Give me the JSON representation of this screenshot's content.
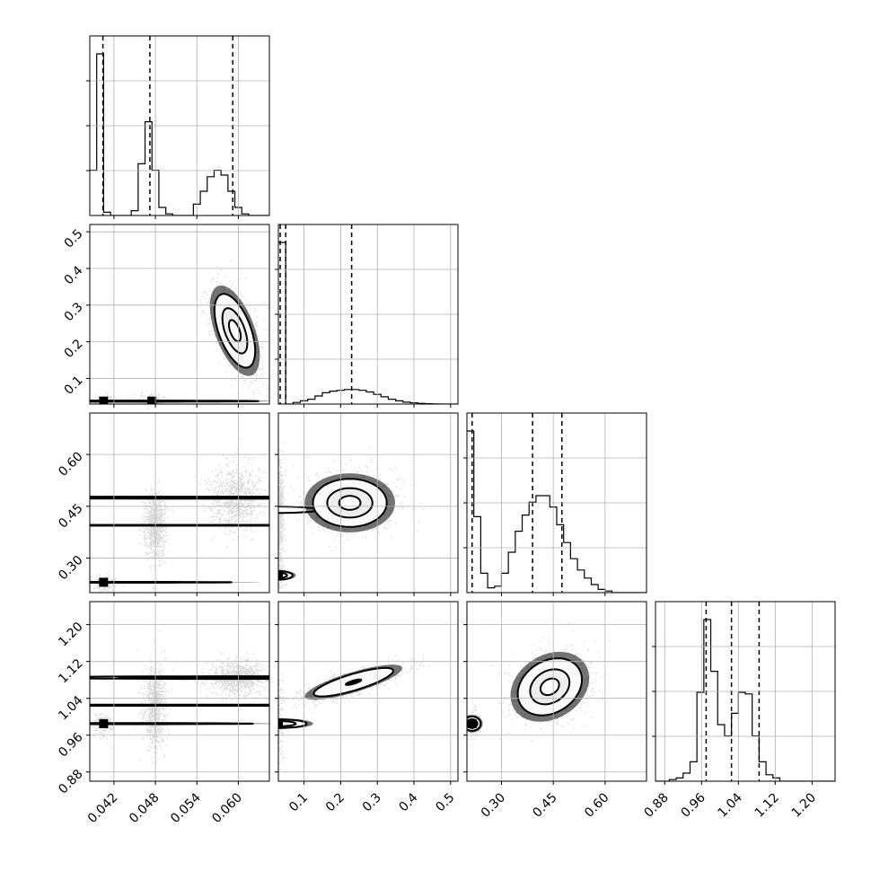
{
  "chart_data": {
    "type": "corner",
    "grid": true,
    "parameters": [
      {
        "range": [
          0.0385,
          0.0645
        ],
        "x_ticks": [
          "0.042",
          "0.048",
          "0.054",
          "0.060"
        ],
        "x_tick_values": [
          0.042,
          0.048,
          0.054,
          0.06
        ],
        "quantiles": [
          0.0404,
          0.0472,
          0.0592
        ],
        "histogram": {
          "edges": [
            0.0385,
            0.0395,
            0.0405,
            0.0415,
            0.0425,
            0.0435,
            0.0445,
            0.0455,
            0.0465,
            0.0475,
            0.0485,
            0.0495,
            0.0505,
            0.0515,
            0.0525,
            0.0535,
            0.0545,
            0.0555,
            0.0565,
            0.0575,
            0.0585,
            0.0595,
            0.0605,
            0.0615,
            0.0625,
            0.0635,
            0.0645
          ],
          "counts": [
            0.28,
            1.0,
            0.02,
            0.0,
            0.0,
            0.0,
            0.03,
            0.32,
            0.58,
            0.28,
            0.05,
            0.01,
            0.0,
            0.0,
            0.0,
            0.07,
            0.15,
            0.24,
            0.28,
            0.25,
            0.15,
            0.05,
            0.01,
            0.0,
            0.0,
            0.0
          ]
        }
      },
      {
        "range": [
          0.03,
          0.52
        ],
        "x_ticks": [
          "0.1",
          "0.2",
          "0.3",
          "0.4",
          "0.5"
        ],
        "x_tick_values": [
          0.1,
          0.2,
          0.3,
          0.4,
          0.5
        ],
        "y_ticks": [
          "0.1",
          "0.2",
          "0.3",
          "0.4",
          "0.5"
        ],
        "y_tick_values": [
          0.1,
          0.2,
          0.3,
          0.4,
          0.5
        ],
        "quantiles": [
          0.035,
          0.05,
          0.23
        ],
        "histogram": {
          "edges": [
            0.03,
            0.05,
            0.07,
            0.09,
            0.11,
            0.13,
            0.15,
            0.17,
            0.19,
            0.21,
            0.23,
            0.25,
            0.27,
            0.29,
            0.31,
            0.33,
            0.35,
            0.37,
            0.39,
            0.41,
            0.43,
            0.45,
            0.47,
            0.49,
            0.51,
            0.52
          ],
          "counts": [
            1.0,
            0.0,
            0.01,
            0.02,
            0.03,
            0.05,
            0.07,
            0.08,
            0.085,
            0.09,
            0.09,
            0.085,
            0.075,
            0.06,
            0.045,
            0.03,
            0.02,
            0.012,
            0.008,
            0.004,
            0.002,
            0.001,
            0.0,
            0.0,
            0.0
          ]
        }
      },
      {
        "range": [
          0.2,
          0.72
        ],
        "x_ticks": [
          "0.30",
          "0.45",
          "0.60"
        ],
        "x_tick_values": [
          0.3,
          0.45,
          0.6
        ],
        "y_ticks": [
          "0.30",
          "0.45",
          "0.60"
        ],
        "y_tick_values": [
          0.3,
          0.45,
          0.6
        ],
        "quantiles": [
          0.215,
          0.39,
          0.475
        ],
        "histogram": {
          "edges": [
            0.2,
            0.22,
            0.24,
            0.26,
            0.28,
            0.3,
            0.32,
            0.34,
            0.36,
            0.38,
            0.4,
            0.42,
            0.44,
            0.46,
            0.48,
            0.5,
            0.52,
            0.54,
            0.56,
            0.58,
            0.6,
            0.62,
            0.64,
            0.66,
            0.68,
            0.7,
            0.72
          ],
          "counts": [
            1.0,
            0.47,
            0.12,
            0.03,
            0.04,
            0.12,
            0.25,
            0.38,
            0.48,
            0.56,
            0.6,
            0.6,
            0.53,
            0.42,
            0.31,
            0.21,
            0.14,
            0.09,
            0.05,
            0.02,
            0.01,
            0.0,
            0.0,
            0.0,
            0.0,
            0.0
          ]
        }
      },
      {
        "range": [
          0.86,
          1.25
        ],
        "x_ticks": [
          "0.88",
          "0.96",
          "1.04",
          "1.12",
          "1.20"
        ],
        "x_tick_values": [
          0.88,
          0.96,
          1.04,
          1.12,
          1.2
        ],
        "y_ticks": [
          "0.88",
          "0.96",
          "1.04",
          "1.12",
          "1.20"
        ],
        "y_tick_values": [
          0.88,
          0.96,
          1.04,
          1.12,
          1.2
        ],
        "quantiles": [
          0.97,
          1.025,
          1.085
        ],
        "histogram": {
          "edges": [
            0.86,
            0.875,
            0.89,
            0.905,
            0.92,
            0.935,
            0.95,
            0.965,
            0.98,
            0.995,
            1.01,
            1.025,
            1.04,
            1.055,
            1.07,
            1.085,
            1.1,
            1.115,
            1.13,
            1.145,
            1.16,
            1.175,
            1.19,
            1.205,
            1.22,
            1.235,
            1.25
          ],
          "counts": [
            0.0,
            0.0,
            0.01,
            0.02,
            0.05,
            0.12,
            0.55,
            1.0,
            0.68,
            0.35,
            0.28,
            0.42,
            0.55,
            0.54,
            0.28,
            0.12,
            0.04,
            0.02,
            0.0,
            0.0,
            0.0,
            0.0,
            0.0,
            0.0,
            0.0,
            0.0
          ]
        }
      }
    ],
    "pairs": [
      {
        "xi": 0,
        "yi": 1,
        "clusters": [
          {
            "cx": 0.0405,
            "cy": 0.038,
            "sx": 0.0008,
            "sy": 0.01,
            "rho": 0,
            "inner": "peak"
          },
          {
            "cx": 0.0475,
            "cy": 0.038,
            "sx": 0.0009,
            "sy": 0.01,
            "rho": 0,
            "inner": "peak"
          },
          {
            "cx": 0.0595,
            "cy": 0.23,
            "sx": 0.0019,
            "sy": 0.065,
            "rho": -0.55,
            "inner": "two"
          }
        ]
      },
      {
        "xi": 0,
        "yi": 2,
        "clusters": [
          {
            "cx": 0.0405,
            "cy": 0.23,
            "sx": 0.0008,
            "sy": 0.012,
            "rho": 0,
            "inner": "peak"
          },
          {
            "cx": 0.0479,
            "cy": 0.395,
            "sx": 0.00075,
            "sy": 0.045,
            "rho": 0,
            "inner": "two"
          },
          {
            "cx": 0.0595,
            "cy": 0.475,
            "sx": 0.0019,
            "sy": 0.045,
            "rho": 0,
            "inner": "two"
          }
        ]
      },
      {
        "xi": 1,
        "yi": 2,
        "clusters": [
          {
            "cx": 0.03,
            "cy": 0.25,
            "sx": 0.008,
            "sy": 0.025,
            "rho": 0,
            "inner": "peak"
          },
          {
            "cx": 0.03,
            "cy": 0.44,
            "sx": 0.006,
            "sy": 0.07,
            "rho": 0,
            "inner": "none"
          },
          {
            "cx": 0.225,
            "cy": 0.46,
            "sx": 0.065,
            "sy": 0.045,
            "rho": 0,
            "inner": "two"
          }
        ]
      },
      {
        "xi": 0,
        "yi": 3,
        "clusters": [
          {
            "cx": 0.0405,
            "cy": 0.985,
            "sx": 0.0008,
            "sy": 0.014,
            "rho": 0,
            "inner": "peak"
          },
          {
            "cx": 0.0478,
            "cy": 1.025,
            "sx": 0.0008,
            "sy": 0.045,
            "rho": 0,
            "inner": "two"
          },
          {
            "cx": 0.0597,
            "cy": 1.085,
            "sx": 0.0019,
            "sy": 0.018,
            "rho": 0,
            "inner": "two"
          }
        ]
      },
      {
        "xi": 1,
        "yi": 3,
        "clusters": [
          {
            "cx": 0.03,
            "cy": 0.985,
            "sx": 0.006,
            "sy": 0.05,
            "rho": 0,
            "inner": "peak"
          },
          {
            "cx": 0.235,
            "cy": 1.075,
            "sx": 0.07,
            "sy": 0.02,
            "rho": 0.8,
            "inner": "one"
          }
        ]
      },
      {
        "xi": 2,
        "yi": 3,
        "clusters": [
          {
            "cx": 0.215,
            "cy": 0.985,
            "sx": 0.01,
            "sy": 0.016,
            "rho": 0,
            "inner": "peak"
          },
          {
            "cx": 0.44,
            "cy": 1.065,
            "sx": 0.06,
            "sy": 0.04,
            "rho": 0.25,
            "inner": "two"
          }
        ]
      }
    ]
  }
}
